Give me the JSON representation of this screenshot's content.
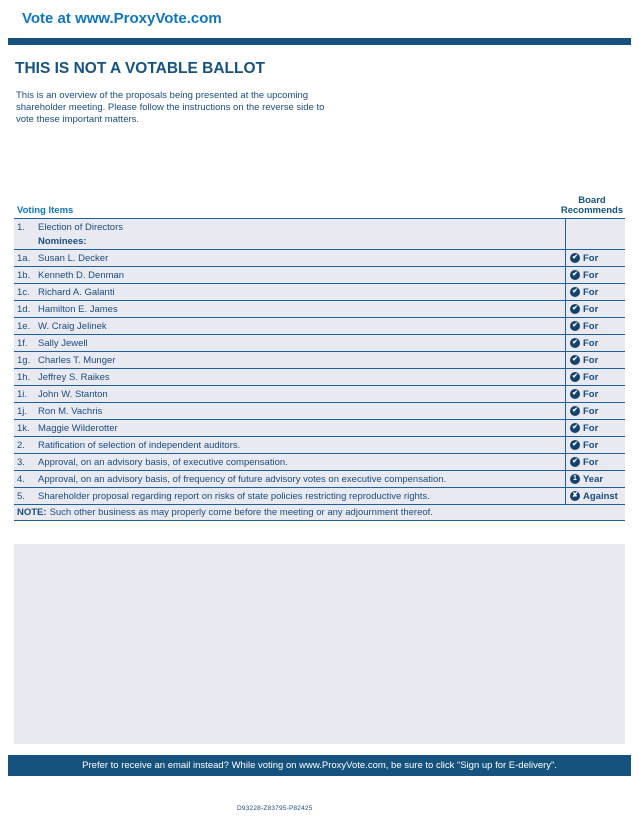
{
  "page": {
    "header_link": "Vote at www.ProxyVote.com",
    "title": "THIS IS NOT A VOTABLE BALLOT",
    "intro": "This is an overview of the proposals being presented at the upcoming shareholder meeting. Please follow the instructions on the reverse side to vote these important matters.",
    "footer_banner": "Prefer to receive an email instead? While voting on www.ProxyVote.com, be sure to click “Sign up for E-delivery”.",
    "document_code": "D93228-Z83795-P82425"
  },
  "colors": {
    "link_blue": "#0f76bc",
    "navy_text": "#1b4d7c",
    "bar_navy": "#15537e",
    "row_background": "#e9e9f2",
    "divider_blue": "#1e5f95",
    "icon_navy": "#16426b"
  },
  "table": {
    "col_items": "Voting Items",
    "col_recommends_line1": "Board",
    "col_recommends_line2": "Recommends",
    "first_row": {
      "num": "1.",
      "text": "Election of Directors",
      "sub": "Nominees:"
    },
    "rows": [
      {
        "num": "1a.",
        "text": "Susan L. Decker",
        "rec": "For",
        "glyph": "✔"
      },
      {
        "num": "1b.",
        "text": "Kenneth D. Denman",
        "rec": "For",
        "glyph": "✔"
      },
      {
        "num": "1c.",
        "text": "Richard A. Galanti",
        "rec": "For",
        "glyph": "✔"
      },
      {
        "num": "1d.",
        "text": "Hamilton E. James",
        "rec": "For",
        "glyph": "✔"
      },
      {
        "num": "1e.",
        "text": "W. Craig Jelinek",
        "rec": "For",
        "glyph": "✔"
      },
      {
        "num": "1f.",
        "text": "Sally Jewell",
        "rec": "For",
        "glyph": "✔"
      },
      {
        "num": "1g.",
        "text": "Charles T. Munger",
        "rec": "For",
        "glyph": "✔"
      },
      {
        "num": "1h.",
        "text": "Jeffrey S. Raikes",
        "rec": "For",
        "glyph": "✔"
      },
      {
        "num": "1i.",
        "text": "John W. Stanton",
        "rec": "For",
        "glyph": "✔"
      },
      {
        "num": "1j.",
        "text": "Ron M. Vachris",
        "rec": "For",
        "glyph": "✔"
      },
      {
        "num": "1k.",
        "text": "Maggie Wilderotter",
        "rec": "For",
        "glyph": "✔"
      },
      {
        "num": "2.",
        "text": "Ratification of selection of independent auditors.",
        "rec": "For",
        "glyph": "✔"
      },
      {
        "num": "3.",
        "text": "Approval, on an advisory basis, of executive compensation.",
        "rec": "For",
        "glyph": "✔"
      },
      {
        "num": "4.",
        "text": "Approval, on an advisory basis, of frequency of future advisory votes on executive compensation.",
        "rec": "Year",
        "glyph": "1"
      },
      {
        "num": "5.",
        "text": "Shareholder proposal regarding report on risks of state policies restricting reproductive rights.",
        "rec": "Against",
        "glyph": "✘"
      }
    ],
    "note_label": "NOTE:",
    "note_text": "Such other business as may properly come before the meeting or any adjournment thereof."
  }
}
